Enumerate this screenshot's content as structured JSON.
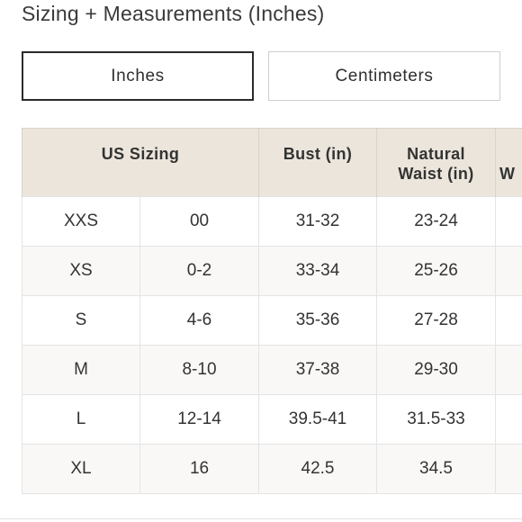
{
  "page": {
    "title": "Sizing + Measurements (Inches)"
  },
  "unit_toggle": {
    "inches_label": "Inches",
    "centimeters_label": "Centimeters",
    "selected": "Inches"
  },
  "table": {
    "headers": {
      "us_sizing": "US Sizing",
      "bust": "Bust (in)",
      "waist_line1": "Natural",
      "waist_line2": "Waist (in)",
      "next_partial": "W"
    },
    "rows": [
      {
        "size": "XXS",
        "number": "00",
        "bust": "31-32",
        "waist": "23-24"
      },
      {
        "size": "XS",
        "number": "0-2",
        "bust": "33-34",
        "waist": "25-26"
      },
      {
        "size": "S",
        "number": "4-6",
        "bust": "35-36",
        "waist": "27-28"
      },
      {
        "size": "M",
        "number": "8-10",
        "bust": "37-38",
        "waist": "29-30"
      },
      {
        "size": "L",
        "number": "12-14",
        "bust": "39.5-41",
        "waist": "31.5-33"
      },
      {
        "size": "XL",
        "number": "16",
        "bust": "42.5",
        "waist": "34.5"
      }
    ]
  },
  "colors": {
    "header_background": "#ece5dc",
    "active_border": "#2a2a2a",
    "inactive_border": "#cfcfcf"
  }
}
